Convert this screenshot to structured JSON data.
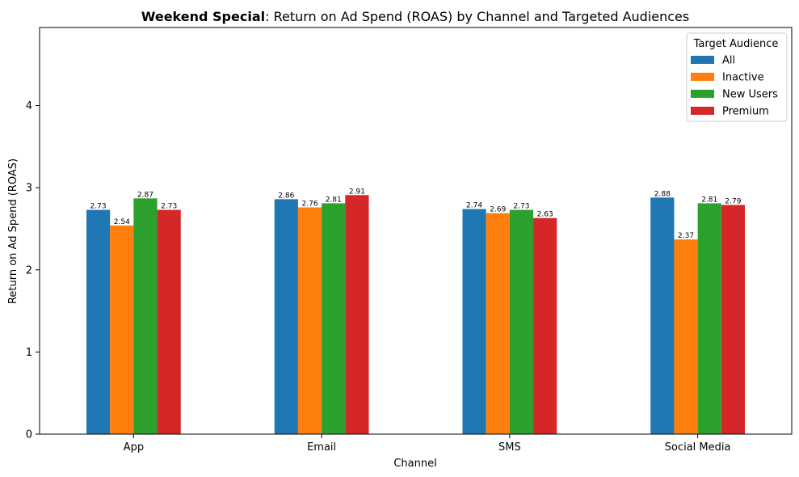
{
  "chart_data": {
    "type": "bar",
    "title_bold": "Weekend Special",
    "title_rest": ": Return on Ad Spend (ROAS) by Channel and Targeted Audiences",
    "xlabel": "Channel",
    "ylabel": "Return on Ad Spend (ROAS)",
    "ylim": [
      0,
      4.95
    ],
    "yticks": [
      "0",
      "1",
      "2",
      "3",
      "4"
    ],
    "categories": [
      "App",
      "Email",
      "SMS",
      "Social Media"
    ],
    "legend": {
      "title": "Target Audience",
      "placement": "top-right"
    },
    "grid": false,
    "series": [
      {
        "name": "All",
        "color": "#1f77b4",
        "values": [
          2.73,
          2.86,
          2.74,
          2.88
        ],
        "labels": [
          "2.73",
          "2.86",
          "2.74",
          "2.88"
        ]
      },
      {
        "name": "Inactive",
        "color": "#ff7f0e",
        "values": [
          2.54,
          2.76,
          2.69,
          2.37
        ],
        "labels": [
          "2.54",
          "2.76",
          "2.69",
          "2.37"
        ]
      },
      {
        "name": "New Users",
        "color": "#2ca02c",
        "values": [
          2.87,
          2.81,
          2.73,
          2.81
        ],
        "labels": [
          "2.87",
          "2.81",
          "2.73",
          "2.81"
        ]
      },
      {
        "name": "Premium",
        "color": "#d62728",
        "values": [
          2.73,
          2.91,
          2.63,
          2.79
        ],
        "labels": [
          "2.73",
          "2.91",
          "2.63",
          "2.79"
        ]
      }
    ]
  }
}
